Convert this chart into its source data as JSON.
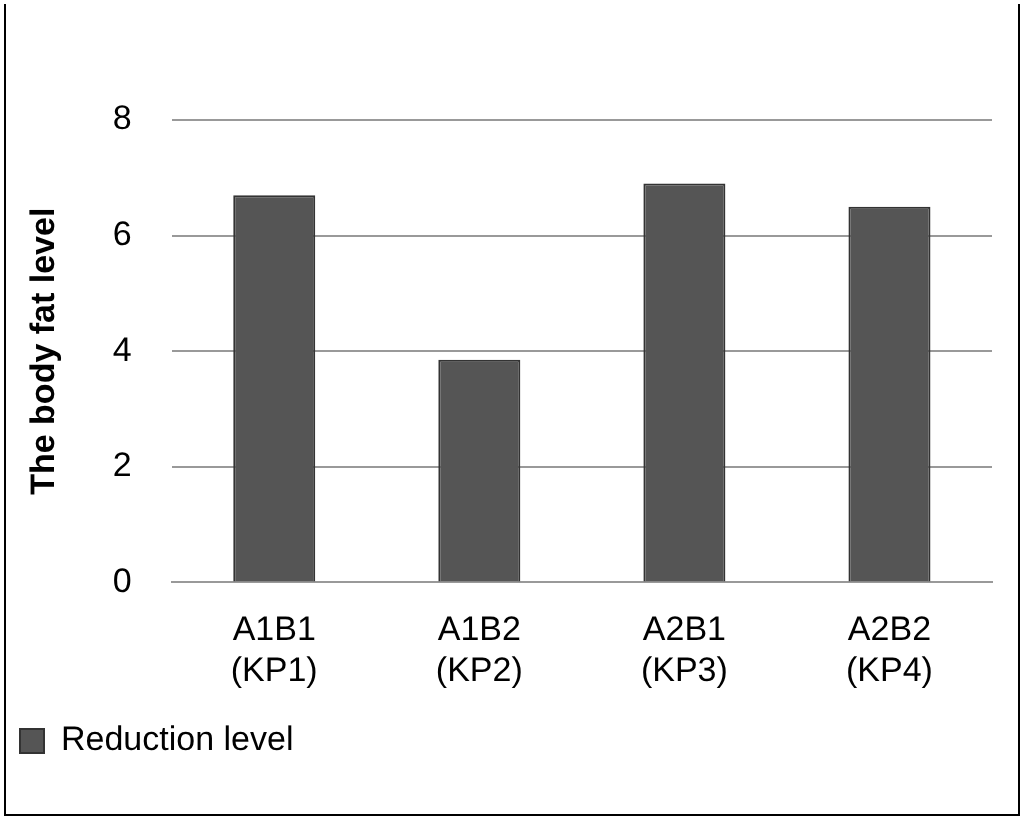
{
  "chart_data": {
    "type": "bar",
    "ylabel": "The body fat level",
    "categories": [
      "A1B1\n(KP1)",
      "A1B2\n(KP2)",
      "A2B1\n(KP3)",
      "A2B2\n(KP4)"
    ],
    "series": [
      {
        "name": "Reduction level",
        "color": "#555555",
        "values": [
          6.7,
          3.85,
          6.9,
          6.5
        ]
      }
    ],
    "ylim": [
      0,
      8
    ],
    "yticks": [
      0,
      2,
      4,
      6,
      8
    ],
    "grid": "y",
    "legend": "bottom left"
  }
}
